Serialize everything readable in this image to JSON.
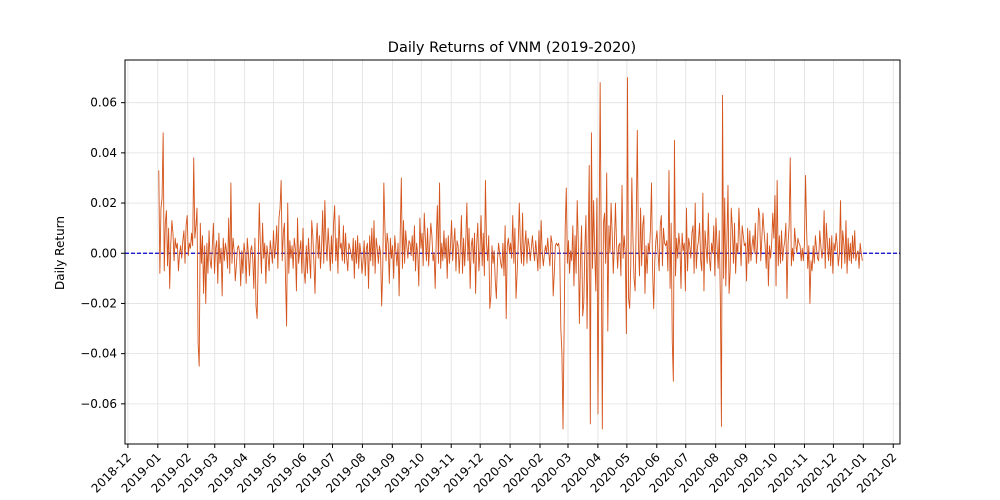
{
  "chart_data": {
    "type": "line",
    "title": "Daily Returns of VNM (2019-2020)",
    "xlabel": "",
    "ylabel": "Daily Return",
    "ylim": [
      -0.076,
      0.077
    ],
    "xlim": [
      "2018-11-28",
      "2021-02-08"
    ],
    "grid": true,
    "line_color": "#d4541c",
    "zero_line_color": "#0000cc",
    "zero_line": 0.0,
    "y_ticks": [
      -0.06,
      -0.04,
      -0.02,
      0.0,
      0.02,
      0.04,
      0.06
    ],
    "y_tick_labels": [
      "−0.06",
      "−0.04",
      "−0.02",
      "0.00",
      "0.02",
      "0.04",
      "0.06"
    ],
    "x_ticks": [
      "2018-12-01",
      "2019-01-01",
      "2019-02-01",
      "2019-03-01",
      "2019-04-01",
      "2019-05-01",
      "2019-06-01",
      "2019-07-01",
      "2019-08-01",
      "2019-09-01",
      "2019-10-01",
      "2019-11-01",
      "2019-12-01",
      "2020-01-01",
      "2020-02-01",
      "2020-03-01",
      "2020-04-01",
      "2020-05-01",
      "2020-06-01",
      "2020-07-01",
      "2020-08-01",
      "2020-09-01",
      "2020-10-01",
      "2020-11-01",
      "2020-12-01",
      "2021-01-01",
      "2021-02-01"
    ],
    "x_tick_labels": [
      "2018-12",
      "2019-01",
      "2019-02",
      "2019-03",
      "2019-04",
      "2019-05",
      "2019-06",
      "2019-07",
      "2019-08",
      "2019-09",
      "2019-10",
      "2019-11",
      "2019-12",
      "2020-01",
      "2020-02",
      "2020-03",
      "2020-04",
      "2020-05",
      "2020-06",
      "2020-07",
      "2020-08",
      "2020-09",
      "2020-10",
      "2020-11",
      "2020-12",
      "2021-01",
      "2021-02"
    ],
    "series": [
      {
        "start_date": "2019-01-02",
        "end_date": "2020-12-31",
        "values": [
          0.033,
          -0.008,
          0.018,
          0.022,
          0.048,
          -0.007,
          0.012,
          0.017,
          -0.005,
          0.01,
          -0.014,
          0.004,
          0.013,
          0.008,
          -0.003,
          0.006,
          0.002,
          0.004,
          -0.007,
          0.0,
          0.003,
          -0.002,
          0.005,
          0.009,
          -0.004,
          0.011,
          0.015,
          -0.001,
          0.004,
          0.002,
          0.008,
          0.003,
          0.038,
          0.006,
          0.011,
          0.018,
          -0.036,
          -0.045,
          0.012,
          -0.004,
          0.007,
          -0.016,
          0.003,
          -0.02,
          0.004,
          -0.008,
          0.009,
          -0.003,
          -0.006,
          0.003,
          0.012,
          -0.008,
          0.002,
          0.005,
          -0.012,
          0.008,
          -0.004,
          0.002,
          -0.017,
          0.006,
          -0.003,
          0.004,
          0.001,
          -0.006,
          0.014,
          -0.008,
          0.028,
          -0.004,
          0.006,
          0.001,
          -0.011,
          -0.005,
          0.002,
          0.003,
          0.0,
          -0.013,
          0.001,
          -0.008,
          0.004,
          0.0,
          -0.012,
          0.006,
          0.0,
          -0.009,
          0.001,
          0.003,
          -0.002,
          -0.014,
          0.006,
          -0.021,
          -0.026,
          -0.004,
          0.02,
          0.003,
          -0.008,
          0.012,
          -0.002,
          0.004,
          -0.012,
          0.003,
          -0.001,
          -0.007,
          0.005,
          0.001,
          -0.004,
          0.009,
          -0.002,
          0.003,
          0.011,
          -0.006,
          0.014,
          0.018,
          0.029,
          -0.003,
          0.008,
          0.012,
          -0.01,
          -0.029,
          0.02,
          -0.008,
          0.005,
          -0.002,
          0.003,
          -0.006,
          0.006,
          0.002,
          -0.015,
          0.014,
          -0.004,
          0.001,
          0.005,
          -0.008,
          0.01,
          -0.007,
          -0.012,
          0.003,
          -0.008,
          0.006,
          -0.002,
          -0.01,
          0.013,
          0.007,
          -0.004,
          -0.016,
          0.004,
          0.012,
          -0.002,
          0.007,
          -0.006,
          0.002,
          0.017,
          -0.004,
          0.021,
          0.005,
          -0.003,
          0.01,
          0.002,
          -0.007,
          0.007,
          -0.004,
          0.012,
          0.019,
          -0.003,
          0.006,
          -0.008,
          0.015,
          0.002,
          0.004,
          -0.003,
          0.011,
          -0.004,
          0.008,
          -0.002,
          -0.007,
          0.004,
          0.002,
          0.0,
          -0.003,
          0.006,
          -0.01,
          0.005,
          -0.004,
          0.007,
          -0.006,
          0.004,
          0.0,
          -0.008,
          -0.003,
          0.005,
          -0.009,
          0.002,
          0.004,
          -0.014,
          0.007,
          -0.003,
          0.01,
          -0.005,
          0.013,
          -0.008,
          0.006,
          0.002,
          -0.004,
          0.003,
          0.0,
          -0.021,
          -0.006,
          0.028,
          0.01,
          -0.003,
          0.008,
          0.004,
          -0.012,
          0.006,
          -0.002,
          0.003,
          -0.01,
          0.007,
          0.001,
          -0.005,
          0.004,
          -0.017,
          0.008,
          0.03,
          -0.006,
          0.013,
          -0.004,
          0.009,
          0.003,
          -0.002,
          0.005,
          0.004,
          -0.001,
          0.007,
          -0.003,
          0.011,
          -0.007,
          0.004,
          0.0,
          -0.013,
          0.014,
          0.002,
          0.008,
          -0.005,
          0.016,
          0.006,
          -0.003,
          0.01,
          -0.005,
          0.003,
          0.012,
          0.007,
          -0.003,
          0.0,
          -0.014,
          0.006,
          0.019,
          -0.004,
          0.028,
          -0.006,
          0.004,
          -0.003,
          0.009,
          -0.002,
          0.006,
          -0.01,
          0.007,
          -0.004,
          0.003,
          0.013,
          -0.003,
          0.004,
          0.01,
          -0.007,
          0.005,
          0.003,
          -0.008,
          0.002,
          0.015,
          -0.008,
          0.006,
          -0.005,
          0.005,
          0.02,
          -0.003,
          0.01,
          -0.014,
          0.003,
          0.006,
          -0.004,
          0.008,
          -0.016,
          0.004,
          0.012,
          -0.007,
          0.001,
          0.015,
          -0.005,
          0.008,
          -0.009,
          0.029,
          0.004,
          -0.003,
          0.007,
          -0.022,
          -0.017,
          0.003,
          -0.004,
          0.001,
          -0.011,
          -0.018,
          -0.003,
          0.004,
          0.0,
          -0.004,
          -0.006,
          0.004,
          -0.009,
          0.011,
          -0.026,
          0.003,
          0.006,
          0.0,
          0.004,
          -0.002,
          0.015,
          -0.004,
          0.01,
          -0.018,
          -0.008,
          0.004,
          0.02,
          0.003,
          -0.004,
          0.016,
          -0.005,
          0.003,
          0.009,
          -0.004,
          0.006,
          0.003,
          -0.003,
          0.002,
          0.007,
          0.001,
          -0.003,
          0.005,
          0.0,
          -0.007,
          0.009,
          -0.006,
          0.013,
          0.0,
          -0.005,
          0.0,
          0.003,
          0.0,
          0.006,
          0.0,
          -0.005,
          0.007,
          0.004,
          -0.017,
          -0.008,
          0.003,
          0.004,
          0.003,
          0.004,
          0.0,
          -0.03,
          -0.04,
          -0.07,
          -0.031,
          0.01,
          0.026,
          -0.004,
          0.005,
          -0.008,
          0.001,
          -0.003,
          0.011,
          -0.013,
          0.007,
          -0.008,
          0.021,
          0.004,
          -0.028,
          -0.002,
          0.011,
          -0.025,
          -0.02,
          0.002,
          0.015,
          -0.03,
          0.003,
          0.035,
          -0.068,
          0.048,
          -0.006,
          0.021,
          0.001,
          -0.015,
          0.022,
          -0.064,
          0.003,
          0.068,
          0.0,
          -0.07,
          0.012,
          0.016,
          -0.004,
          0.032,
          -0.031,
          0.011,
          0.0,
          0.02,
          0.008,
          -0.008,
          0.003,
          0.02,
          0.004,
          -0.006,
          0.003,
          0.004,
          -0.009,
          0.027,
          -0.002,
          0.007,
          0.0,
          -0.032,
          0.07,
          -0.018,
          -0.022,
          -0.005,
          0.03,
          0.006,
          -0.01,
          -0.015,
          0.012,
          0.049,
          0.004,
          -0.009,
          0.018,
          -0.005,
          0.011,
          0.015,
          -0.016,
          0.003,
          -0.008,
          0.004,
          0.0,
          0.009,
          0.028,
          -0.007,
          -0.022,
          -0.003,
          0.005,
          0.009,
          0.0,
          -0.007,
          0.011,
          0.015,
          -0.005,
          0.01,
          0.004,
          0.003,
          0.005,
          -0.007,
          0.033,
          -0.014,
          0.012,
          -0.035,
          -0.051,
          0.045,
          -0.009,
          0.006,
          -0.002,
          0.008,
          0.003,
          -0.014,
          0.008,
          0.001,
          0.004,
          -0.015,
          0.018,
          -0.007,
          0.006,
          0.003,
          -0.002,
          0.008,
          0.011,
          -0.008,
          0.02,
          -0.006,
          0.002,
          0.005,
          0.012,
          -0.003,
          -0.007,
          0.024,
          -0.015,
          0.009,
          0.002,
          -0.004,
          0.016,
          -0.002,
          -0.007,
          0.004,
          0.0,
          0.011,
          -0.009,
          0.014,
          0.003,
          -0.006,
          0.009,
          -0.017,
          -0.069,
          0.063,
          -0.01,
          0.022,
          -0.013,
          0.005,
          0.027,
          -0.016,
          -0.007,
          0.018,
          0.01,
          -0.004,
          0.012,
          -0.008,
          0.004,
          0.0,
          0.018,
          0.006,
          -0.005,
          0.011,
          0.007,
          0.003,
          0.004,
          -0.011,
          0.01,
          -0.004,
          0.009,
          -0.003,
          0.003,
          0.007,
          0.0,
          0.012,
          -0.004,
          0.003,
          0.018,
          0.015,
          -0.003,
          0.006,
          0.016,
          0.009,
          0.003,
          -0.006,
          0.008,
          -0.013,
          0.003,
          -0.002,
          0.004,
          0.016,
          0.006,
          0.023,
          -0.013,
          0.029,
          -0.005,
          0.007,
          -0.004,
          0.009,
          -0.003,
          0.002,
          0.005,
          0.012,
          -0.018,
          0.004,
          0.011,
          0.038,
          -0.005,
          0.002,
          -0.003,
          0.01,
          0.004,
          0.0,
          0.006,
          0.004,
          0.003,
          -0.003,
          0.002,
          -0.003,
          0.004,
          0.031,
          0.009,
          -0.006,
          0.003,
          -0.02,
          -0.003,
          -0.007,
          0.003,
          -0.004,
          0.007,
          0.002,
          -0.002,
          -0.003,
          0.009,
          0.003,
          -0.002,
          0.002,
          0.017,
          -0.006,
          0.012,
          0.004,
          -0.003,
          0.006,
          -0.005,
          0.007,
          -0.008,
          0.004,
          0.001,
          0.008,
          0.003,
          -0.005,
          0.0,
          0.021,
          -0.006,
          0.009,
          0.004,
          -0.004,
          0.013,
          -0.008,
          0.006,
          -0.003,
          0.004,
          -0.004,
          0.007,
          -0.002,
          0.009,
          -0.003,
          0.0,
          0.001,
          -0.006,
          0.004,
          0.0,
          -0.003
        ]
      }
    ]
  }
}
